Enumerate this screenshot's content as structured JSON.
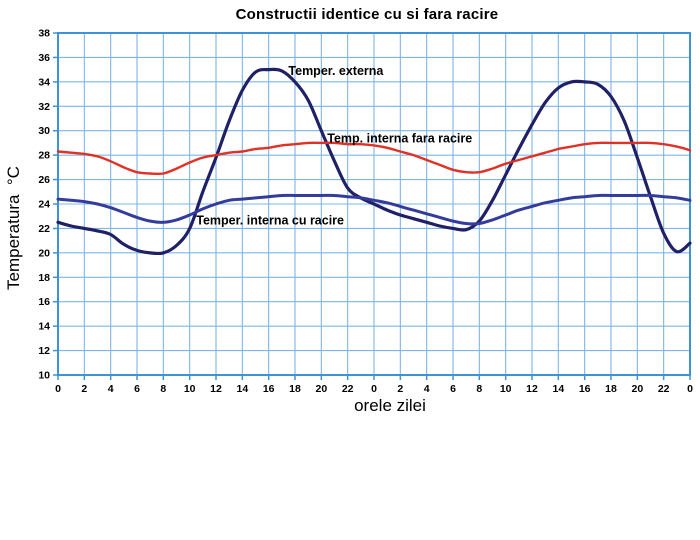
{
  "chart_data": {
    "type": "line",
    "title": "Constructii identice cu si fara racire",
    "xlabel": "orele zilei",
    "ylabel": "Temperatura  °C",
    "xlim": [
      0,
      48
    ],
    "ylim": [
      10,
      38
    ],
    "x_tick_step": 2,
    "y_tick_step": 2,
    "grid": true,
    "legend_position": "inline-annotations",
    "x_tick_labels": [
      "0",
      "2",
      "4",
      "6",
      "8",
      "10",
      "12",
      "14",
      "16",
      "18",
      "20",
      "22",
      "0",
      "2",
      "4",
      "6",
      "8",
      "10",
      "12",
      "14",
      "16",
      "18",
      "20",
      "22",
      "0"
    ],
    "y_tick_labels": [
      "38",
      "36",
      "34",
      "32",
      "30",
      "28",
      "26",
      "24",
      "22",
      "20",
      "18",
      "16",
      "14",
      "12",
      "10"
    ],
    "colors": {
      "grid": "#7fb5e6",
      "axis_box": "#3f93d4",
      "externa": "#1f2066",
      "fara_racire": "#e03126",
      "cu_racire": "#333c9d",
      "text": "#000000"
    },
    "x": [
      0,
      1,
      2,
      3,
      4,
      5,
      6,
      7,
      8,
      9,
      10,
      11,
      12,
      13,
      14,
      15,
      16,
      17,
      18,
      19,
      20,
      21,
      22,
      23,
      24,
      25,
      26,
      27,
      28,
      29,
      30,
      31,
      32,
      33,
      34,
      35,
      36,
      37,
      38,
      39,
      40,
      41,
      42,
      43,
      44,
      45,
      46,
      47,
      48
    ],
    "series": [
      {
        "name": "Temper. externa",
        "color": "#1f2066",
        "stroke_width": 3.2,
        "values": [
          22.5,
          22.2,
          22.0,
          21.8,
          21.5,
          20.7,
          20.2,
          20.0,
          20.0,
          20.6,
          22.0,
          25.0,
          27.8,
          30.8,
          33.3,
          34.8,
          35.0,
          34.9,
          34.0,
          32.5,
          30.0,
          27.5,
          25.3,
          24.5,
          24.0,
          23.5,
          23.1,
          22.8,
          22.5,
          22.2,
          22.0,
          21.9,
          22.6,
          24.3,
          26.4,
          28.5,
          30.5,
          32.3,
          33.5,
          34.0,
          34.0,
          33.8,
          32.8,
          30.8,
          27.8,
          24.6,
          21.6,
          20.1,
          20.8
        ]
      },
      {
        "name": "Temp. interna fara racire",
        "color": "#e03126",
        "stroke_width": 2.4,
        "values": [
          28.3,
          28.2,
          28.1,
          27.9,
          27.5,
          27.0,
          26.6,
          26.5,
          26.5,
          26.9,
          27.4,
          27.8,
          28.0,
          28.2,
          28.3,
          28.5,
          28.6,
          28.8,
          28.9,
          29.0,
          29.0,
          29.0,
          28.9,
          28.9,
          28.8,
          28.6,
          28.3,
          28.0,
          27.6,
          27.2,
          26.8,
          26.6,
          26.6,
          26.9,
          27.3,
          27.6,
          27.9,
          28.2,
          28.5,
          28.7,
          28.9,
          29.0,
          29.0,
          29.0,
          29.0,
          29.0,
          28.9,
          28.7,
          28.4
        ]
      },
      {
        "name": "Temper. interna cu racire",
        "color": "#333c9d",
        "stroke_width": 3.0,
        "values": [
          24.4,
          24.3,
          24.2,
          24.0,
          23.7,
          23.3,
          22.9,
          22.6,
          22.5,
          22.7,
          23.1,
          23.6,
          24.0,
          24.3,
          24.4,
          24.5,
          24.6,
          24.7,
          24.7,
          24.7,
          24.7,
          24.7,
          24.6,
          24.5,
          24.3,
          24.1,
          23.8,
          23.5,
          23.2,
          22.9,
          22.6,
          22.4,
          22.4,
          22.7,
          23.1,
          23.5,
          23.8,
          24.1,
          24.3,
          24.5,
          24.6,
          24.7,
          24.7,
          24.7,
          24.7,
          24.7,
          24.6,
          24.5,
          24.3
        ]
      }
    ],
    "annotations": [
      {
        "text": "Temper. externa",
        "x_h": 17.5,
        "y_t": 34.55
      },
      {
        "text": "Temp. interna fara racire",
        "x_h": 20.45,
        "y_t": 29.05
      },
      {
        "text": "Temper. interna cu racire",
        "x_h": 10.5,
        "y_t": 22.33
      }
    ]
  }
}
